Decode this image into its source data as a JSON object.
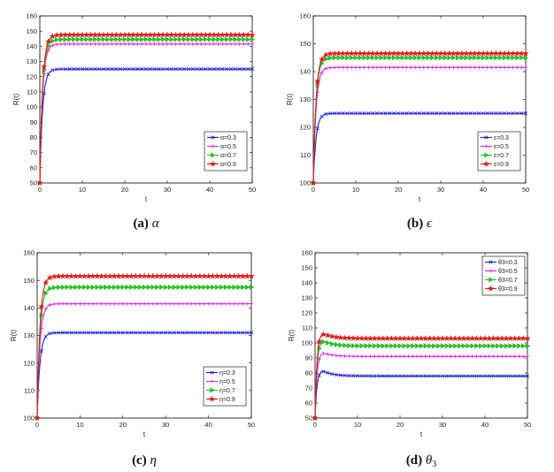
{
  "chart_data": [
    {
      "type": "line",
      "caption_letter": "(a)",
      "caption_symbol": "α",
      "xlabel": "t",
      "ylabel": "R(t)",
      "xlim": [
        0,
        50
      ],
      "ylim": [
        50,
        160
      ],
      "xticks": [
        0,
        10,
        20,
        30,
        40,
        50
      ],
      "yticks": [
        50,
        60,
        70,
        80,
        90,
        100,
        110,
        120,
        130,
        140,
        150,
        160
      ],
      "legend_position": "lower-right",
      "series": [
        {
          "name": "α=0.3",
          "color": "#1f1fd6",
          "marker": "x",
          "start": 50,
          "peak": 125,
          "plateau": 125
        },
        {
          "name": "α=0.5",
          "color": "#e020e0",
          "marker": "+",
          "start": 50,
          "peak": 141.5,
          "plateau": 141.5
        },
        {
          "name": "α=0.7",
          "color": "#22c022",
          "marker": "triangle",
          "start": 50,
          "peak": 144.5,
          "plateau": 144.5
        },
        {
          "name": "α=0.9",
          "color": "#e01a1a",
          "marker": "star",
          "start": 50,
          "peak": 147.5,
          "plateau": 147.5
        }
      ]
    },
    {
      "type": "line",
      "caption_letter": "(b)",
      "caption_symbol": "ϵ",
      "xlabel": "t",
      "ylabel": "R(t)",
      "xlim": [
        0,
        50
      ],
      "ylim": [
        100,
        160
      ],
      "xticks": [
        0,
        10,
        20,
        30,
        40,
        50
      ],
      "yticks": [
        100,
        110,
        120,
        130,
        140,
        150,
        160
      ],
      "legend_position": "lower-right",
      "series": [
        {
          "name": "ε=0.3",
          "color": "#1f1fd6",
          "marker": "x",
          "start": 100,
          "peak": 125,
          "plateau": 125
        },
        {
          "name": "ε=0.5",
          "color": "#e020e0",
          "marker": "+",
          "start": 100,
          "peak": 141.5,
          "plateau": 141.5
        },
        {
          "name": "ε=0.7",
          "color": "#22c022",
          "marker": "triangle",
          "start": 100,
          "peak": 145,
          "plateau": 145
        },
        {
          "name": "ε=0.9",
          "color": "#e01a1a",
          "marker": "star",
          "start": 100,
          "peak": 146.5,
          "plateau": 146.5
        }
      ]
    },
    {
      "type": "line",
      "caption_letter": "(c)",
      "caption_symbol": "η",
      "xlabel": "t",
      "ylabel": "R(t)",
      "xlim": [
        0,
        50
      ],
      "ylim": [
        100,
        160
      ],
      "xticks": [
        0,
        10,
        20,
        30,
        40,
        50
      ],
      "yticks": [
        100,
        110,
        120,
        130,
        140,
        150,
        160
      ],
      "legend_position": "lower-right",
      "series": [
        {
          "name": "η=0.3",
          "color": "#1f1fd6",
          "marker": "x",
          "start": 100,
          "peak": 131,
          "plateau": 131
        },
        {
          "name": "η=0.5",
          "color": "#e020e0",
          "marker": "+",
          "start": 100,
          "peak": 141.5,
          "plateau": 141.5
        },
        {
          "name": "η=0.7",
          "color": "#22c022",
          "marker": "triangle",
          "start": 100,
          "peak": 147.5,
          "plateau": 147.5
        },
        {
          "name": "η=0.9",
          "color": "#e01a1a",
          "marker": "star",
          "start": 100,
          "peak": 151.5,
          "plateau": 151.5
        }
      ]
    },
    {
      "type": "line",
      "caption_letter": "(d)",
      "caption_symbol": "θ",
      "caption_sub": "3",
      "xlabel": "t",
      "ylabel": "R(t)",
      "xlim": [
        0,
        50
      ],
      "ylim": [
        50,
        160
      ],
      "xticks": [
        0,
        10,
        20,
        30,
        40,
        50
      ],
      "yticks": [
        50,
        60,
        70,
        80,
        90,
        100,
        110,
        120,
        130,
        140,
        150,
        160
      ],
      "legend_position": "top-right",
      "series": [
        {
          "name": "θ3=0.3",
          "color": "#1f1fd6",
          "marker": "x",
          "start": 50,
          "peak": 82,
          "plateau": 78
        },
        {
          "name": "θ3=0.5",
          "color": "#e020e0",
          "marker": "+",
          "start": 50,
          "peak": 94,
          "plateau": 91
        },
        {
          "name": "θ3=0.7",
          "color": "#22c022",
          "marker": "triangle",
          "start": 50,
          "peak": 102,
          "plateau": 98
        },
        {
          "name": "θ3=0.9",
          "color": "#e01a1a",
          "marker": "star",
          "start": 50,
          "peak": 107,
          "plateau": 103
        }
      ]
    }
  ]
}
